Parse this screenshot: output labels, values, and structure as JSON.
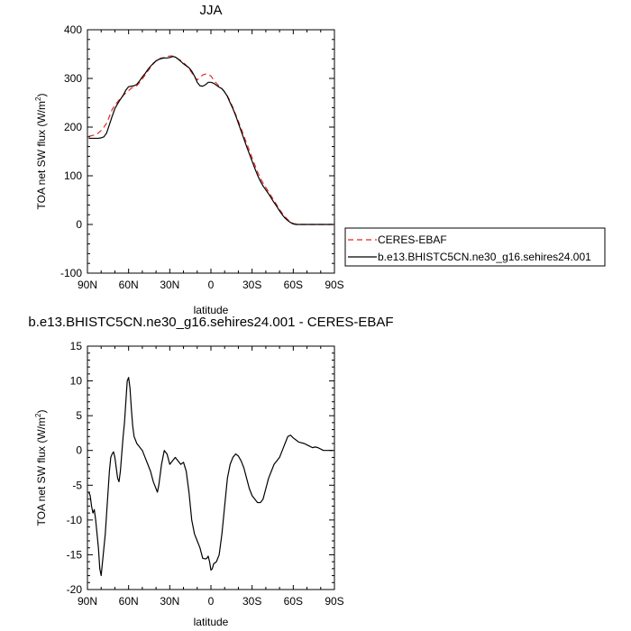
{
  "chart_data": [
    {
      "type": "line",
      "title": "JJA",
      "xlabel": "latitude",
      "ylabel": "TOA net SW flux (W/m²)",
      "ylabel_main": "TOA net SW flux (W/m",
      "ylabel_sup": "2",
      "ylabel_close": ")",
      "xlim": [
        90,
        -90
      ],
      "ylim": [
        -100,
        400
      ],
      "x_ticks": [
        {
          "value": 90,
          "label": "90N"
        },
        {
          "value": 60,
          "label": "60N"
        },
        {
          "value": 30,
          "label": "30N"
        },
        {
          "value": 0,
          "label": "0"
        },
        {
          "value": -30,
          "label": "30S"
        },
        {
          "value": -60,
          "label": "60S"
        },
        {
          "value": -90,
          "label": "90S"
        }
      ],
      "y_ticks": [
        {
          "value": 400,
          "label": "400"
        },
        {
          "value": 300,
          "label": "300"
        },
        {
          "value": 200,
          "label": "200"
        },
        {
          "value": 100,
          "label": "100"
        },
        {
          "value": 0,
          "label": "0"
        },
        {
          "value": -100,
          "label": "-100"
        }
      ],
      "legend_position": "right of panel",
      "series": [
        {
          "name": "CERES-EBAF",
          "color": "#e8261f",
          "dash": "dashed",
          "x": [
            89,
            86,
            84,
            82,
            80,
            78,
            76,
            74,
            72,
            70,
            68,
            66,
            64,
            62,
            60,
            58,
            56,
            54,
            52,
            50,
            48,
            46,
            44,
            42,
            40,
            38,
            36,
            34,
            32,
            30,
            28,
            26,
            24,
            22,
            20,
            18,
            16,
            14,
            12,
            10,
            8,
            6,
            4,
            2,
            0,
            -2,
            -4,
            -6,
            -8,
            -10,
            -12,
            -14,
            -16,
            -18,
            -20,
            -22,
            -24,
            -26,
            -28,
            -30,
            -32,
            -34,
            -36,
            -38,
            -40,
            -42,
            -44,
            -46,
            -48,
            -50,
            -52,
            -54,
            -56,
            -58,
            -60,
            -62,
            -64,
            -66,
            -68,
            -70,
            -72,
            -74,
            -76,
            -78,
            -80,
            -82,
            -84,
            -86,
            -89
          ],
          "y": [
            181,
            183,
            184,
            188,
            193,
            200,
            208,
            222,
            236,
            245,
            252,
            259,
            265,
            270,
            275,
            280,
            282,
            285,
            292,
            299,
            307,
            315,
            323,
            330,
            336,
            340,
            342,
            343,
            345,
            346,
            346,
            344,
            340,
            337,
            332,
            327,
            320,
            312,
            303,
            297,
            302,
            307,
            309,
            308,
            305,
            297,
            290,
            284,
            279,
            272,
            264,
            253,
            240,
            226,
            212,
            197,
            182,
            167,
            152,
            137,
            122,
            108,
            95,
            85,
            76,
            67,
            58,
            49,
            40,
            31,
            23,
            16,
            10,
            5,
            2,
            1,
            0,
            0,
            0,
            0,
            0,
            0,
            0,
            0,
            0,
            0,
            0,
            0,
            0
          ]
        },
        {
          "name": "b.e13.BHISTC5CN.ne30_g16.sehires24.001",
          "color": "#000000",
          "dash": "solid",
          "x": [
            89,
            86,
            84,
            82,
            80,
            78,
            76,
            74,
            72,
            70,
            68,
            66,
            64,
            62,
            60,
            58,
            56,
            54,
            52,
            50,
            48,
            46,
            44,
            42,
            40,
            38,
            36,
            34,
            32,
            30,
            28,
            26,
            24,
            22,
            20,
            18,
            16,
            14,
            12,
            10,
            8,
            6,
            4,
            2,
            0,
            -2,
            -4,
            -6,
            -8,
            -10,
            -12,
            -14,
            -16,
            -18,
            -20,
            -22,
            -24,
            -26,
            -28,
            -30,
            -32,
            -34,
            -36,
            -38,
            -40,
            -42,
            -44,
            -46,
            -48,
            -50,
            -52,
            -54,
            -56,
            -58,
            -60,
            -62,
            -64,
            -66,
            -68,
            -70,
            -72,
            -74,
            -76,
            -78,
            -80,
            -82,
            -84,
            -86,
            -89
          ],
          "y": [
            177,
            177,
            177,
            177,
            178,
            180,
            188,
            205,
            222,
            238,
            248,
            257,
            265,
            276,
            283,
            284,
            285,
            288,
            295,
            303,
            310,
            318,
            325,
            331,
            336,
            339,
            341,
            342,
            342,
            343,
            345,
            344,
            340,
            335,
            330,
            326,
            322,
            315,
            305,
            292,
            285,
            284,
            287,
            292,
            292,
            290,
            286,
            282,
            279,
            272,
            263,
            250,
            238,
            224,
            208,
            192,
            176,
            160,
            145,
            130,
            115,
            101,
            89,
            79,
            71,
            63,
            54,
            45,
            37,
            28,
            20,
            13,
            8,
            4,
            1,
            0,
            0,
            0,
            0,
            0,
            0,
            0,
            0,
            0,
            0,
            0,
            0,
            0,
            0
          ]
        }
      ]
    },
    {
      "type": "line",
      "title": "b.e13.BHISTC5CN.ne30_g16.sehires24.001 - CERES-EBAF",
      "xlabel": "latitude",
      "ylabel": "TOA net SW flux (W/m²)",
      "ylabel_main": "TOA net SW flux (W/m",
      "ylabel_sup": "2",
      "ylabel_close": ")",
      "xlim": [
        90,
        -90
      ],
      "ylim": [
        -20,
        15
      ],
      "x_ticks": [
        {
          "value": 90,
          "label": "90N"
        },
        {
          "value": 60,
          "label": "60N"
        },
        {
          "value": 30,
          "label": "30N"
        },
        {
          "value": 0,
          "label": "0"
        },
        {
          "value": -30,
          "label": "30S"
        },
        {
          "value": -60,
          "label": "60S"
        },
        {
          "value": -90,
          "label": "90S"
        }
      ],
      "y_ticks": [
        {
          "value": 15,
          "label": "15"
        },
        {
          "value": 10,
          "label": "10"
        },
        {
          "value": 5,
          "label": "5"
        },
        {
          "value": 0,
          "label": "0"
        },
        {
          "value": -5,
          "label": "-5"
        },
        {
          "value": -10,
          "label": "-10"
        },
        {
          "value": -15,
          "label": "-15"
        },
        {
          "value": -20,
          "label": "-20"
        }
      ],
      "series": [
        {
          "color": "#000000",
          "dash": "solid",
          "x": [
            89,
            88,
            87,
            86,
            85,
            84,
            83,
            82,
            81,
            80,
            79,
            78,
            77,
            76,
            75,
            74,
            73,
            72,
            71,
            70,
            69,
            68,
            67,
            66,
            65,
            64,
            63,
            62,
            61,
            60,
            59,
            58,
            57,
            56,
            55,
            54,
            52,
            50,
            48,
            46,
            44,
            42,
            40,
            39,
            38,
            36,
            34,
            32,
            30,
            28,
            26,
            24,
            22,
            20,
            18,
            16,
            14,
            12,
            10,
            8,
            6,
            4,
            3,
            2,
            1,
            0,
            -1,
            -2,
            -4,
            -6,
            -8,
            -10,
            -12,
            -14,
            -16,
            -18,
            -20,
            -22,
            -24,
            -26,
            -28,
            -30,
            -32,
            -34,
            -36,
            -38,
            -40,
            -42,
            -44,
            -46,
            -48,
            -50,
            -52,
            -54,
            -56,
            -58,
            -60,
            -62,
            -64,
            -66,
            -68,
            -70,
            -72,
            -74,
            -76,
            -78,
            -80,
            -82,
            -84,
            -86,
            -89
          ],
          "y": [
            -6,
            -6.5,
            -8,
            -9,
            -8.5,
            -10,
            -12,
            -14,
            -17,
            -18,
            -16,
            -14,
            -12,
            -9,
            -6,
            -3,
            -1,
            -0.5,
            -0.2,
            -1,
            -2.5,
            -4,
            -4.5,
            -3,
            -0.5,
            2,
            4,
            7,
            10,
            10.5,
            9,
            6,
            3.5,
            2,
            1.5,
            1,
            0.5,
            0,
            -1,
            -2,
            -3,
            -4.5,
            -5.5,
            -6,
            -5,
            -2,
            0,
            -0.5,
            -2,
            -1.5,
            -1,
            -1.5,
            -2,
            -1.7,
            -3,
            -6,
            -10,
            -12,
            -13,
            -14,
            -15.5,
            -15.6,
            -15.5,
            -15.2,
            -16,
            -17.2,
            -17,
            -16.3,
            -16,
            -15,
            -12,
            -8,
            -4,
            -2,
            -1,
            -0.5,
            -0.8,
            -1.5,
            -2.5,
            -4,
            -5.5,
            -6.5,
            -7,
            -7.5,
            -7.5,
            -7,
            -5.5,
            -4,
            -3,
            -2,
            -1.5,
            -1,
            0,
            1,
            2,
            2.2,
            1.8,
            1.5,
            1.2,
            1.1,
            1,
            0.8,
            0.6,
            0.4,
            0.5,
            0.4,
            0.2,
            0,
            0,
            0,
            0
          ]
        }
      ]
    }
  ]
}
